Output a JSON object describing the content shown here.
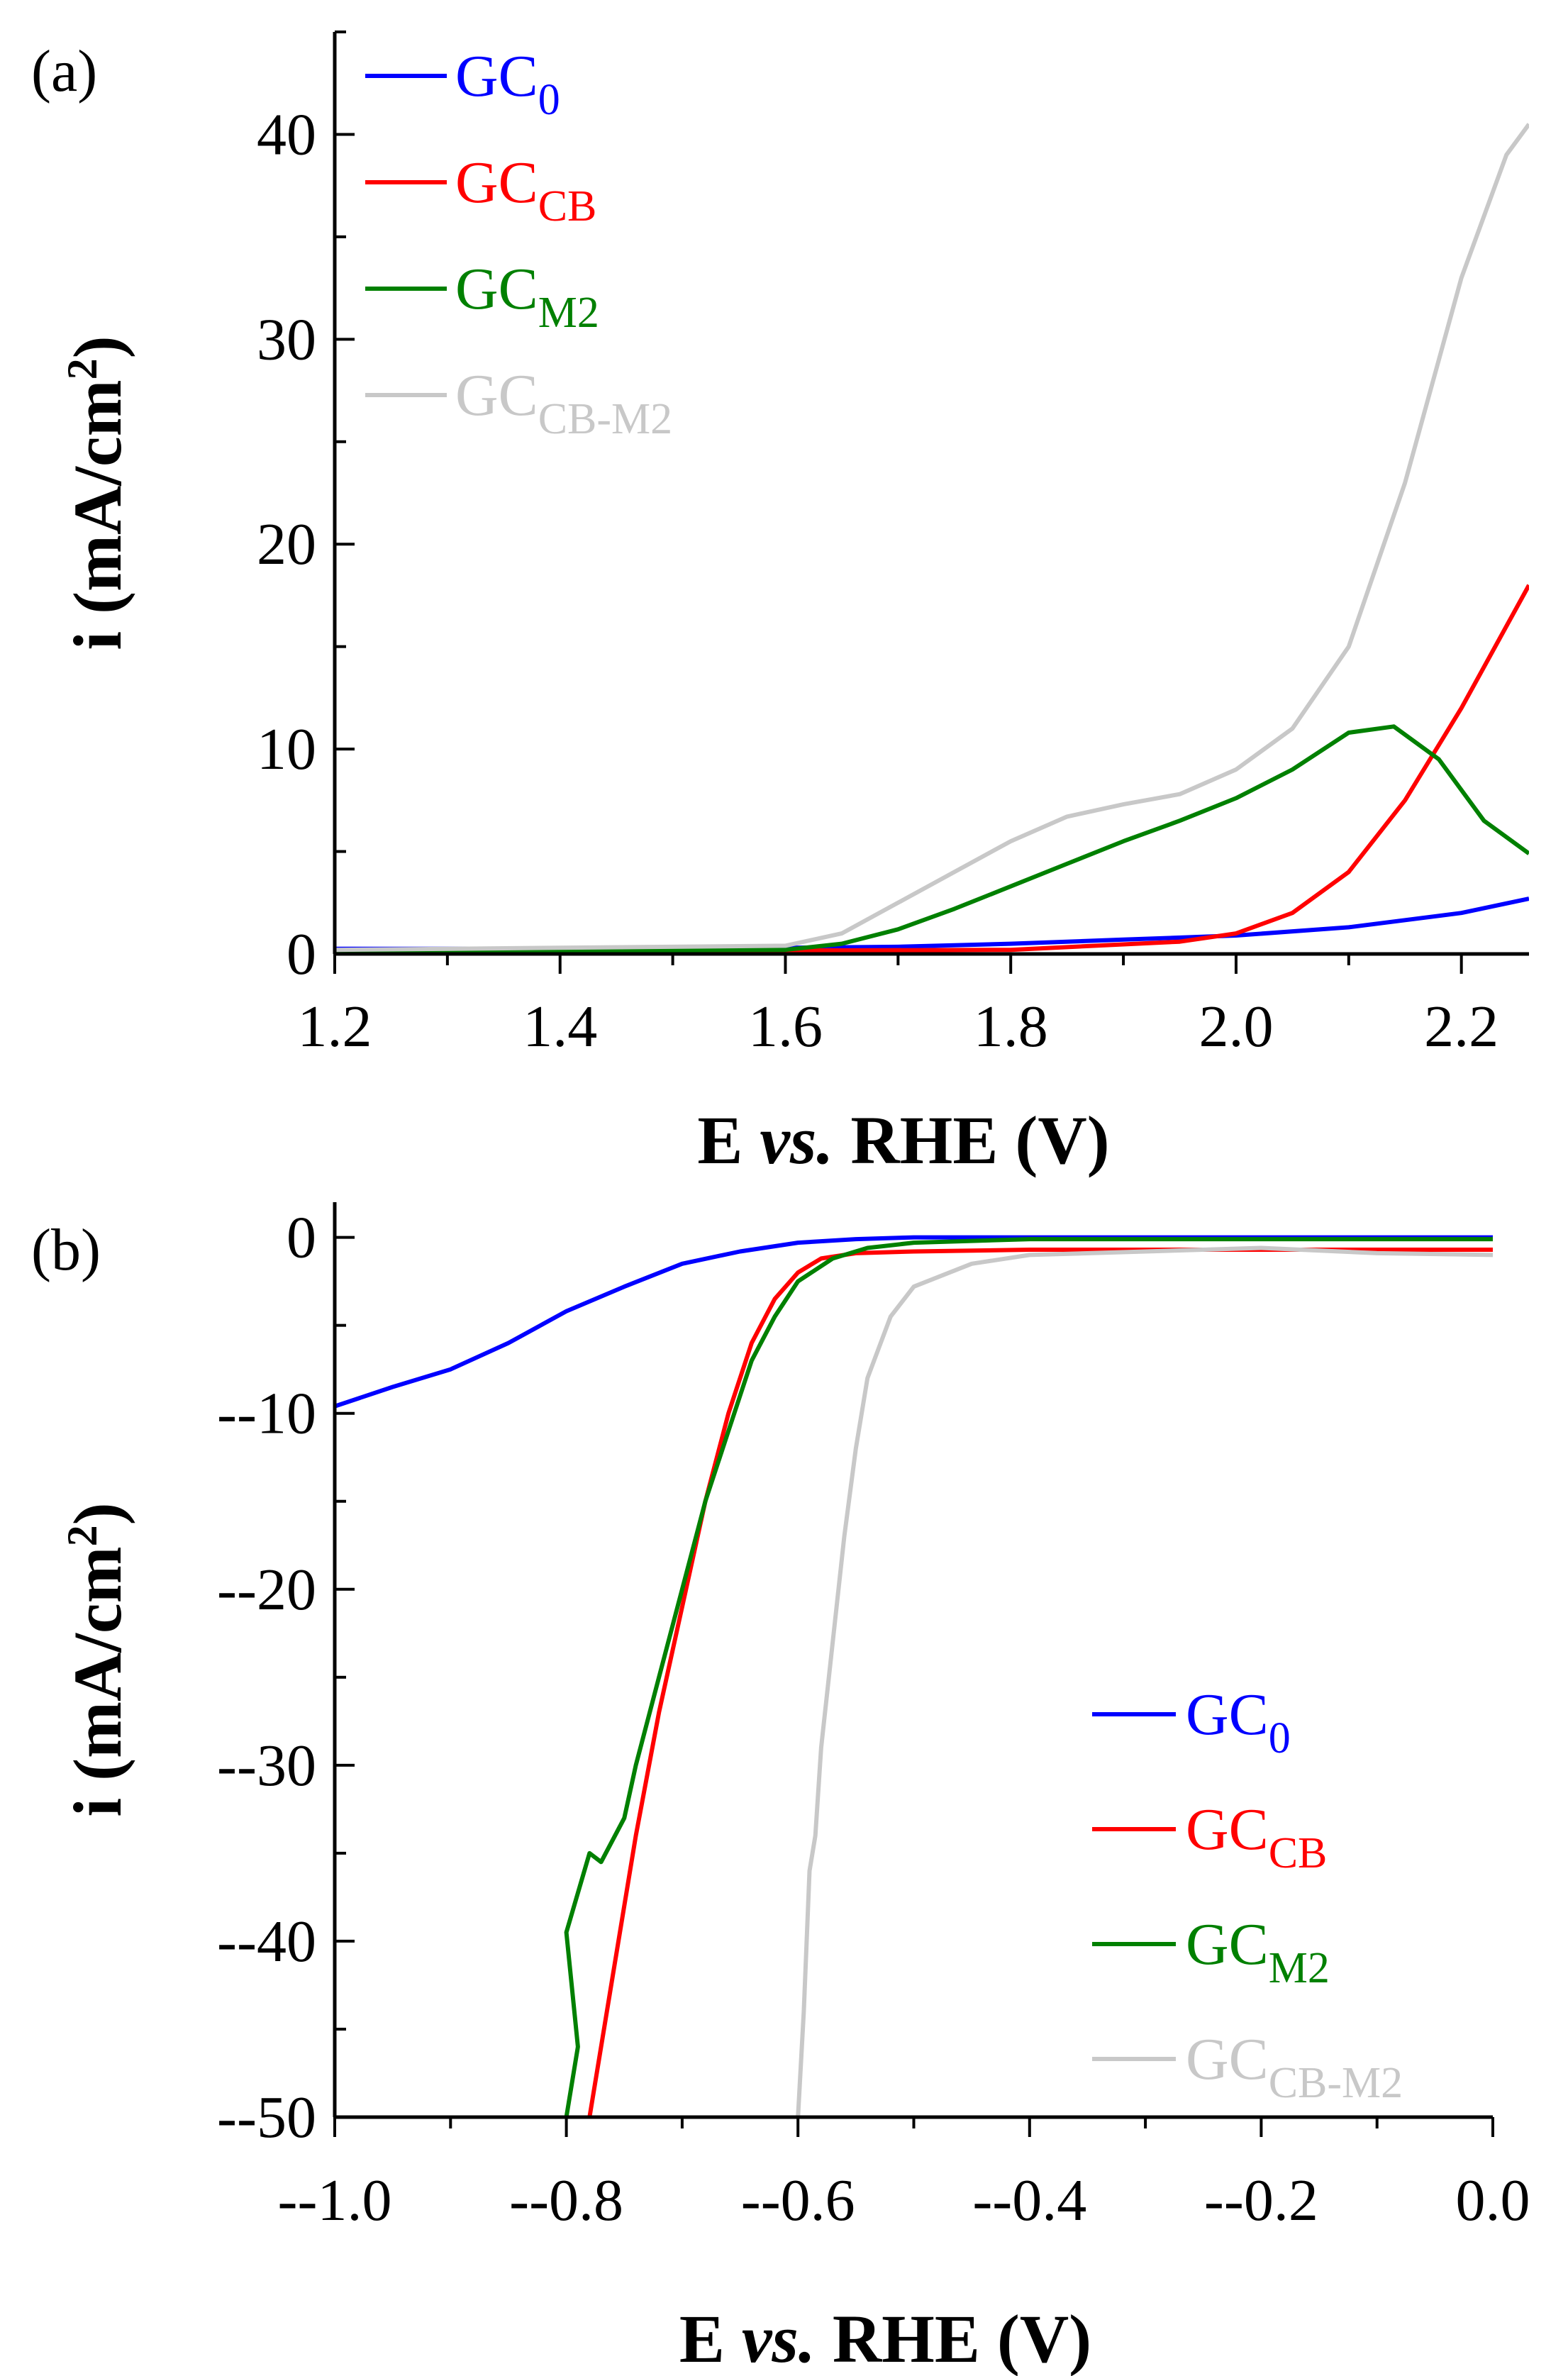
{
  "chart_data": [
    {
      "panel": "(a)",
      "type": "line",
      "xlabel": {
        "prefix": "E ",
        "italic": "vs.",
        "suffix": " RHE (V)"
      },
      "ylabel": {
        "main": "i (mA/cm",
        "sup": "2",
        "close": ")"
      },
      "xlim": [
        1.2,
        2.26
      ],
      "ylim": [
        0,
        45
      ],
      "xticks": [
        1.2,
        1.4,
        1.6,
        1.8,
        2.0,
        2.2
      ],
      "xtick_labels": [
        "1.2",
        "1.4",
        "1.6",
        "1.8",
        "2.0",
        "2.2"
      ],
      "yticks": [
        0,
        10,
        20,
        30,
        40
      ],
      "ytick_labels": [
        "0",
        "10",
        "20",
        "30",
        "40"
      ],
      "legend_position": "top-left",
      "series": [
        {
          "name": "GC",
          "sub": "0",
          "color": "#0000ff",
          "x": [
            1.2,
            1.4,
            1.6,
            1.7,
            1.8,
            1.9,
            2.0,
            2.1,
            2.2,
            2.26
          ],
          "y": [
            0.25,
            0.25,
            0.3,
            0.35,
            0.5,
            0.7,
            0.9,
            1.3,
            2.0,
            2.7
          ]
        },
        {
          "name": "GC",
          "sub": "CB",
          "color": "#ff0000",
          "x": [
            1.2,
            1.5,
            1.8,
            1.95,
            2.0,
            2.05,
            2.1,
            2.15,
            2.2,
            2.26
          ],
          "y": [
            0.15,
            0.15,
            0.2,
            0.6,
            1.0,
            2.0,
            4.0,
            7.5,
            12.0,
            18.0
          ]
        },
        {
          "name": "GC",
          "sub": "M2",
          "color": "#008000",
          "x": [
            1.2,
            1.6,
            1.65,
            1.7,
            1.75,
            1.8,
            1.85,
            1.9,
            1.95,
            2.0,
            2.05,
            2.1,
            2.14,
            2.18,
            2.22,
            2.26
          ],
          "y": [
            0.15,
            0.2,
            0.5,
            1.2,
            2.2,
            3.3,
            4.4,
            5.5,
            6.5,
            7.6,
            9.0,
            10.8,
            11.1,
            9.5,
            6.5,
            4.9
          ]
        },
        {
          "name": "GC",
          "sub": "CB-M2",
          "color": "#c8c8c8",
          "x": [
            1.2,
            1.6,
            1.65,
            1.7,
            1.75,
            1.8,
            1.85,
            1.9,
            1.95,
            2.0,
            2.05,
            2.1,
            2.15,
            2.2,
            2.24,
            2.26
          ],
          "y": [
            0.2,
            0.4,
            1.0,
            2.5,
            4.0,
            5.5,
            6.7,
            7.3,
            7.8,
            9.0,
            11.0,
            15.0,
            23.0,
            33.0,
            39.0,
            40.5
          ]
        }
      ]
    },
    {
      "panel": "(b)",
      "type": "line",
      "xlabel": {
        "prefix": "E ",
        "italic": "vs.",
        "suffix": " RHE (V)"
      },
      "ylabel": {
        "main": "i (mA/cm",
        "sup": "2",
        "close": ")"
      },
      "xlim": [
        -1.0,
        0.0
      ],
      "ylim": [
        -50,
        2
      ],
      "xticks": [
        -1.0,
        -0.8,
        -0.6,
        -0.4,
        -0.2,
        0.0
      ],
      "xtick_labels": [
        "--1.0",
        "--0.8",
        "--0.6",
        "--0.4",
        "--0.2",
        "0.0"
      ],
      "yticks": [
        0,
        -10,
        -20,
        -30,
        -40,
        -50
      ],
      "ytick_labels": [
        "0",
        "--10",
        "--20",
        "--30",
        "--40",
        "--50"
      ],
      "legend_position": "bottom-right",
      "series": [
        {
          "name": "GC",
          "sub": "0",
          "color": "#0000ff",
          "x": [
            -1.0,
            -0.95,
            -0.9,
            -0.85,
            -0.8,
            -0.75,
            -0.7,
            -0.65,
            -0.6,
            -0.55,
            -0.5,
            -0.4,
            -0.2,
            0.0
          ],
          "y": [
            -9.6,
            -8.5,
            -7.5,
            -6.0,
            -4.2,
            -2.8,
            -1.5,
            -0.8,
            -0.3,
            -0.1,
            0.0,
            0.0,
            0.0,
            0.0
          ]
        },
        {
          "name": "GC",
          "sub": "CB",
          "color": "#ff0000",
          "x": [
            -0.78,
            -0.76,
            -0.74,
            -0.72,
            -0.7,
            -0.68,
            -0.66,
            -0.64,
            -0.62,
            -0.6,
            -0.58,
            -0.55,
            -0.5,
            -0.4,
            -0.2,
            0.0
          ],
          "y": [
            -50,
            -42,
            -34,
            -27,
            -21,
            -15,
            -10,
            -6,
            -3.5,
            -2.0,
            -1.2,
            -0.9,
            -0.8,
            -0.7,
            -0.7,
            -0.7
          ]
        },
        {
          "name": "GC",
          "sub": "M2",
          "color": "#008000",
          "x": [
            -0.8,
            -0.79,
            -0.8,
            -0.78,
            -0.77,
            -0.75,
            -0.74,
            -0.72,
            -0.7,
            -0.68,
            -0.66,
            -0.64,
            -0.62,
            -0.6,
            -0.57,
            -0.54,
            -0.5,
            -0.4,
            -0.2,
            0.0
          ],
          "y": [
            -50,
            -46,
            -39.5,
            -35,
            -35.5,
            -33,
            -30,
            -25,
            -20,
            -15,
            -11,
            -7,
            -4.5,
            -2.5,
            -1.2,
            -0.6,
            -0.3,
            -0.1,
            -0.1,
            -0.1
          ]
        },
        {
          "name": "GC",
          "sub": "CB-M2",
          "color": "#c8c8c8",
          "x": [
            -0.6,
            -0.595,
            -0.59,
            -0.585,
            -0.58,
            -0.57,
            -0.56,
            -0.55,
            -0.54,
            -0.52,
            -0.5,
            -0.45,
            -0.4,
            -0.3,
            -0.2,
            -0.1,
            0.0
          ],
          "y": [
            -50,
            -44,
            -36,
            -34,
            -29,
            -23,
            -17,
            -12,
            -8,
            -4.5,
            -2.8,
            -1.5,
            -1.0,
            -0.8,
            -0.6,
            -0.9,
            -1.0
          ]
        }
      ]
    }
  ]
}
